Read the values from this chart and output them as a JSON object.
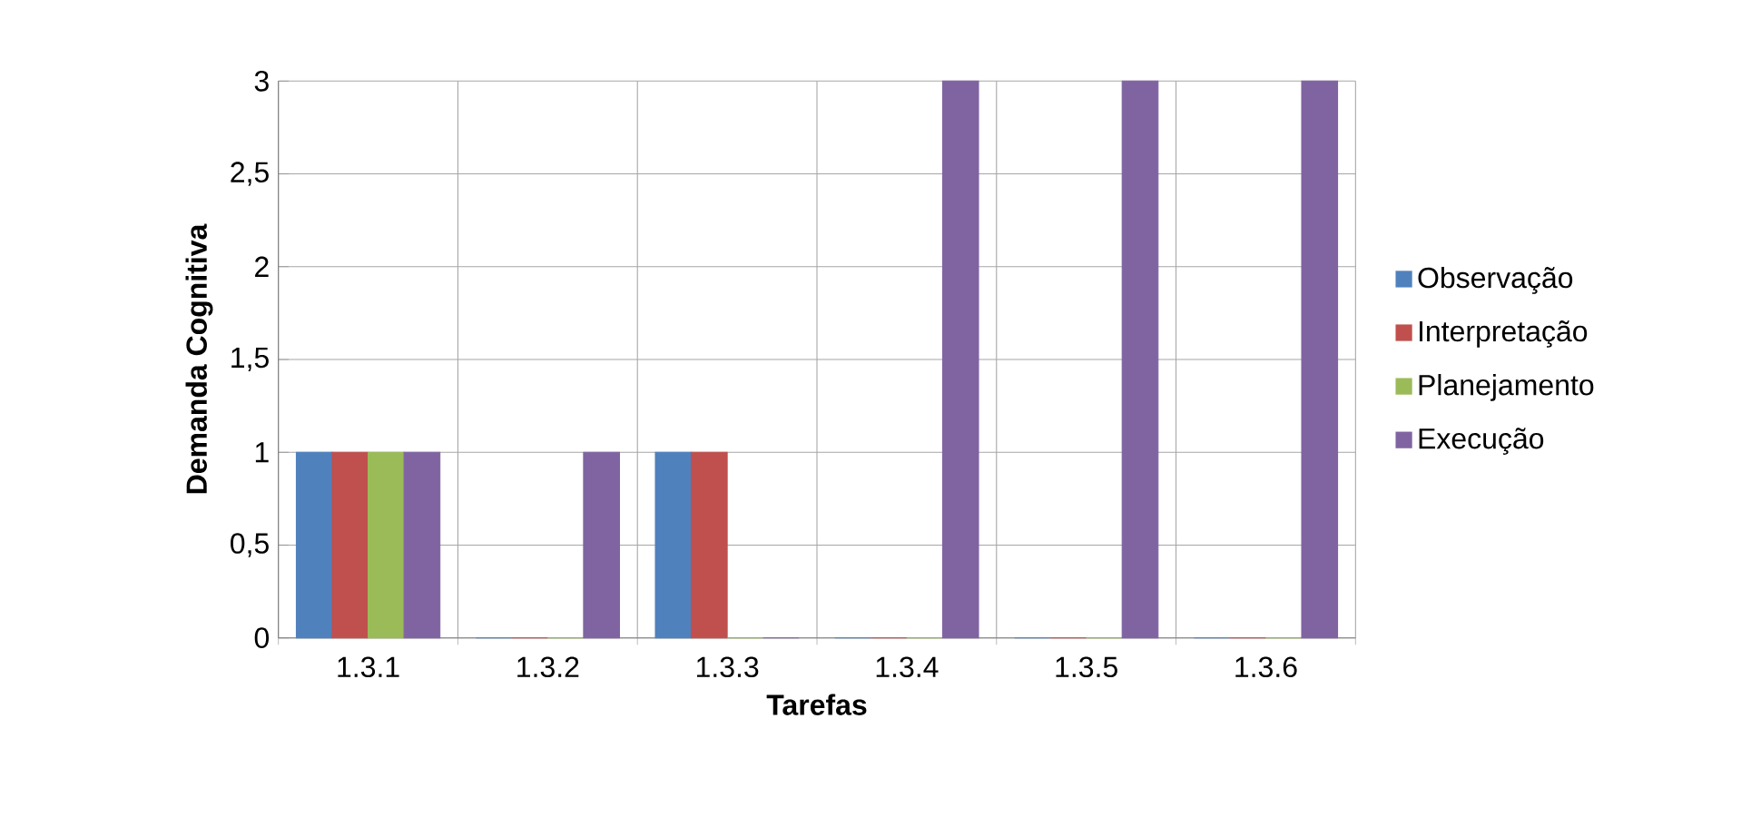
{
  "chart_data": {
    "type": "bar",
    "xlabel": "Tarefas",
    "ylabel": "Demanda Cognitiva",
    "categories": [
      "1.3.1",
      "1.3.2",
      "1.3.3",
      "1.3.4",
      "1.3.5",
      "1.3.6"
    ],
    "series": [
      {
        "name": "Observação",
        "color": "#4f81bd",
        "values": [
          1,
          0,
          1,
          0,
          0,
          0
        ]
      },
      {
        "name": "Interpretação",
        "color": "#c0504d",
        "values": [
          1,
          0,
          1,
          0,
          0,
          0
        ]
      },
      {
        "name": "Planejamento",
        "color": "#9bbb59",
        "values": [
          1,
          0,
          0,
          0,
          0,
          0
        ]
      },
      {
        "name": "Execução",
        "color": "#8064a2",
        "values": [
          1,
          1,
          0,
          3,
          3,
          3
        ]
      }
    ],
    "ylim": [
      0,
      3
    ],
    "yticks": [
      0,
      {
        "value": 0.5,
        "label": "0,5"
      },
      1,
      {
        "value": 1.5,
        "label": "1,5"
      },
      2,
      {
        "value": 2.5,
        "label": "2,5"
      },
      3
    ],
    "grid": true,
    "legend": "right"
  }
}
